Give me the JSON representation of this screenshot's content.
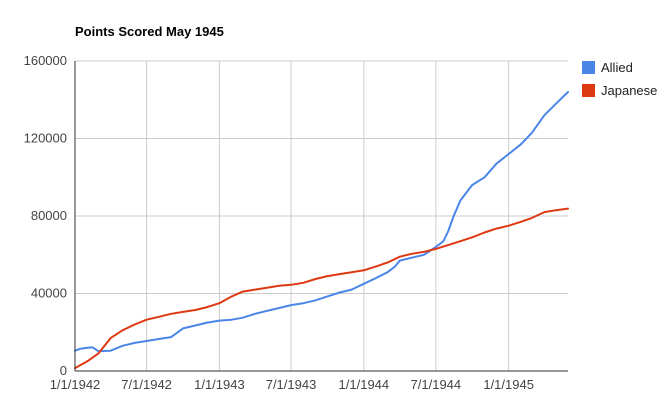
{
  "chart_data": {
    "type": "line",
    "title": "Points Scored May 1945",
    "xlabel": "",
    "ylabel": "",
    "ylim": [
      0,
      160000
    ],
    "y_ticks": [
      "0",
      "40000",
      "80000",
      "120000",
      "160000"
    ],
    "x_ticks": [
      {
        "date": "1942-01-01",
        "label": "1/1/1942"
      },
      {
        "date": "1942-07-01",
        "label": "7/1/1942"
      },
      {
        "date": "1943-01-01",
        "label": "1/1/1943"
      },
      {
        "date": "1943-07-01",
        "label": "7/1/1943"
      },
      {
        "date": "1944-01-01",
        "label": "1/1/1944"
      },
      {
        "date": "1944-07-01",
        "label": "7/1/1944"
      },
      {
        "date": "1945-01-01",
        "label": "1/1/1945"
      }
    ],
    "xlim": [
      "1942-01-01",
      "1945-05-31"
    ],
    "grid": true,
    "legend_position": "right",
    "series": [
      {
        "name": "Allied",
        "color": "#4a86e8",
        "points": [
          [
            "1942-01-01",
            10500
          ],
          [
            "1942-01-15",
            11500
          ],
          [
            "1942-02-01",
            12000
          ],
          [
            "1942-02-15",
            12200
          ],
          [
            "1942-03-01",
            10200
          ],
          [
            "1942-03-15",
            10300
          ],
          [
            "1942-04-01",
            10500
          ],
          [
            "1942-05-01",
            13000
          ],
          [
            "1942-06-01",
            14500
          ],
          [
            "1942-07-01",
            15500
          ],
          [
            "1942-08-01",
            16500
          ],
          [
            "1942-09-01",
            17500
          ],
          [
            "1942-10-01",
            22000
          ],
          [
            "1942-11-01",
            23500
          ],
          [
            "1942-12-01",
            25000
          ],
          [
            "1943-01-01",
            26000
          ],
          [
            "1943-02-01",
            26500
          ],
          [
            "1943-03-01",
            27500
          ],
          [
            "1943-04-01",
            29500
          ],
          [
            "1943-05-01",
            31000
          ],
          [
            "1943-06-01",
            32500
          ],
          [
            "1943-07-01",
            34000
          ],
          [
            "1943-08-01",
            35000
          ],
          [
            "1943-09-01",
            36500
          ],
          [
            "1943-10-01",
            38500
          ],
          [
            "1943-11-01",
            40500
          ],
          [
            "1943-12-01",
            42000
          ],
          [
            "1944-01-01",
            45000
          ],
          [
            "1944-02-01",
            48000
          ],
          [
            "1944-03-01",
            51000
          ],
          [
            "1944-03-20",
            54000
          ],
          [
            "1944-04-01",
            57000
          ],
          [
            "1944-05-01",
            58500
          ],
          [
            "1944-06-01",
            60000
          ],
          [
            "1944-07-01",
            64000
          ],
          [
            "1944-07-20",
            67000
          ],
          [
            "1944-08-01",
            72000
          ],
          [
            "1944-08-15",
            80000
          ],
          [
            "1944-09-01",
            88000
          ],
          [
            "1944-10-01",
            96000
          ],
          [
            "1944-11-01",
            100000
          ],
          [
            "1944-12-01",
            107000
          ],
          [
            "1945-01-01",
            112000
          ],
          [
            "1945-02-01",
            117000
          ],
          [
            "1945-03-01",
            123000
          ],
          [
            "1945-04-01",
            132000
          ],
          [
            "1945-05-01",
            138000
          ],
          [
            "1945-05-31",
            144000
          ]
        ]
      },
      {
        "name": "Japanese",
        "color": "#dc3912",
        "points": [
          [
            "1942-01-01",
            1500
          ],
          [
            "1942-02-01",
            5000
          ],
          [
            "1942-03-01",
            9000
          ],
          [
            "1942-04-01",
            17000
          ],
          [
            "1942-05-01",
            21000
          ],
          [
            "1942-06-01",
            24000
          ],
          [
            "1942-07-01",
            26500
          ],
          [
            "1942-08-01",
            28000
          ],
          [
            "1942-09-01",
            29500
          ],
          [
            "1942-10-01",
            30500
          ],
          [
            "1942-11-01",
            31500
          ],
          [
            "1942-12-01",
            33000
          ],
          [
            "1943-01-01",
            35000
          ],
          [
            "1943-02-01",
            38500
          ],
          [
            "1943-03-01",
            41000
          ],
          [
            "1943-04-01",
            42000
          ],
          [
            "1943-05-01",
            43000
          ],
          [
            "1943-06-01",
            44000
          ],
          [
            "1943-07-01",
            44500
          ],
          [
            "1943-08-01",
            45500
          ],
          [
            "1943-09-01",
            47500
          ],
          [
            "1943-10-01",
            49000
          ],
          [
            "1943-11-01",
            50000
          ],
          [
            "1943-12-01",
            51000
          ],
          [
            "1944-01-01",
            52000
          ],
          [
            "1944-02-01",
            54000
          ],
          [
            "1944-03-01",
            56000
          ],
          [
            "1944-04-01",
            59000
          ],
          [
            "1944-05-01",
            60500
          ],
          [
            "1944-06-01",
            61500
          ],
          [
            "1944-07-01",
            63000
          ],
          [
            "1944-08-01",
            65000
          ],
          [
            "1944-09-01",
            67000
          ],
          [
            "1944-10-01",
            69000
          ],
          [
            "1944-11-01",
            71500
          ],
          [
            "1944-12-01",
            73500
          ],
          [
            "1945-01-01",
            75000
          ],
          [
            "1945-02-01",
            77000
          ],
          [
            "1945-03-01",
            79000
          ],
          [
            "1945-04-01",
            82000
          ],
          [
            "1945-05-01",
            83000
          ],
          [
            "1945-05-31",
            83800
          ]
        ]
      }
    ]
  }
}
